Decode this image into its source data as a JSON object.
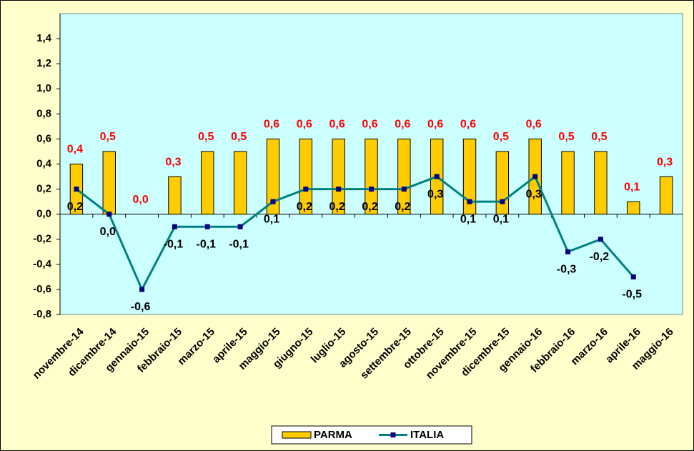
{
  "chart_data": {
    "type": "bar_line",
    "categories": [
      "novembre-14",
      "dicembre-14",
      "gennaio-15",
      "febbraio-15",
      "marzo-15",
      "aprile-15",
      "maggio-15",
      "giugno-15",
      "luglio-15",
      "agosto-15",
      "settembre-15",
      "ottobre-15",
      "novembre-15",
      "dicembre-15",
      "gennaio-16",
      "febbraio-16",
      "marzo-16",
      "aprile-16",
      "maggio-16"
    ],
    "series": [
      {
        "name": "PARMA",
        "type": "bar",
        "color": "#ffcc00",
        "label_color": "#ff0000",
        "values": [
          0.4,
          0.5,
          0.0,
          0.3,
          0.5,
          0.5,
          0.6,
          0.6,
          0.6,
          0.6,
          0.6,
          0.6,
          0.6,
          0.5,
          0.6,
          0.5,
          0.5,
          0.1,
          0.3
        ],
        "value_labels": [
          "0,4",
          "0,5",
          "0,0",
          "0,3",
          "0,5",
          "0,5",
          "0,6",
          "0,6",
          "0,6",
          "0,6",
          "0,6",
          "0,6",
          "0,6",
          "0,5",
          "0,6",
          "0,5",
          "0,5",
          "0,1",
          "0,3"
        ]
      },
      {
        "name": "ITALIA",
        "type": "line",
        "color": "#008080",
        "marker_color": "#000080",
        "label_color": "#000000",
        "values": [
          0.2,
          0.0,
          -0.6,
          -0.1,
          -0.1,
          -0.1,
          0.1,
          0.2,
          0.2,
          0.2,
          0.2,
          0.3,
          0.1,
          0.1,
          0.3,
          -0.3,
          -0.2,
          -0.5,
          null
        ],
        "value_labels": [
          "0,2",
          "0,0",
          "-0,6",
          "-0,1",
          "-0,1",
          "-0,1",
          "0,1",
          "0,2",
          "0,2",
          "0,2",
          "0,2",
          "0,3",
          "0,1",
          "0,1",
          "0,3",
          "-0,3",
          "-0,2",
          "-0,5",
          null
        ]
      }
    ],
    "ylim": [
      -0.8,
      1.6
    ],
    "yticks": [
      {
        "value": -0.8,
        "label": "-0,8"
      },
      {
        "value": -0.6,
        "label": "-0,6"
      },
      {
        "value": -0.4,
        "label": "-0,4"
      },
      {
        "value": -0.2,
        "label": "-0,2"
      },
      {
        "value": 0,
        "label": "0,0"
      },
      {
        "value": 0.2,
        "label": "0,2"
      },
      {
        "value": 0.4,
        "label": "0,4"
      },
      {
        "value": 0.6,
        "label": "0,6"
      },
      {
        "value": 0.8,
        "label": "0,8"
      },
      {
        "value": 1.0,
        "label": "1,0"
      },
      {
        "value": 1.2,
        "label": "1,2"
      },
      {
        "value": 1.4,
        "label": "1,4"
      }
    ],
    "grid": false,
    "legend": "bottom"
  }
}
